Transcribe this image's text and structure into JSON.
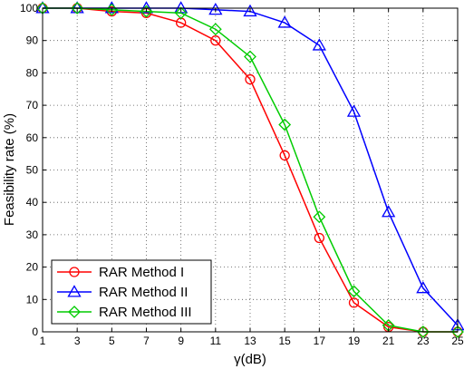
{
  "chart_data": {
    "type": "line",
    "title": "",
    "xlabel": "γ(dB)",
    "ylabel": "Feasibility rate (%)",
    "xlim": [
      1,
      25
    ],
    "ylim": [
      0,
      100
    ],
    "xticks": [
      1,
      3,
      5,
      7,
      9,
      11,
      13,
      15,
      17,
      19,
      21,
      23,
      25
    ],
    "yticks": [
      0,
      10,
      20,
      30,
      40,
      50,
      60,
      70,
      80,
      90,
      100
    ],
    "grid": true,
    "legend_position": "bottom-left",
    "x": [
      1,
      3,
      5,
      7,
      9,
      11,
      13,
      15,
      17,
      19,
      21,
      23,
      25
    ],
    "series": [
      {
        "name": "RAR Method I",
        "color": "#ff0000",
        "marker": "circle",
        "values": [
          100,
          100,
          99,
          98.5,
          95.5,
          90,
          78,
          54.5,
          29,
          9,
          1.5,
          0,
          0
        ]
      },
      {
        "name": "RAR Method II",
        "color": "#0000ff",
        "marker": "triangle",
        "values": [
          100,
          100,
          100,
          100,
          100,
          99.5,
          99,
          95.5,
          88.5,
          68,
          37,
          13.5,
          2
        ]
      },
      {
        "name": "RAR Method III",
        "color": "#00cc00",
        "marker": "diamond",
        "values": [
          100,
          100,
          99.5,
          99,
          98.5,
          93.5,
          85,
          64,
          35.5,
          12.5,
          2,
          0,
          0
        ]
      }
    ]
  }
}
